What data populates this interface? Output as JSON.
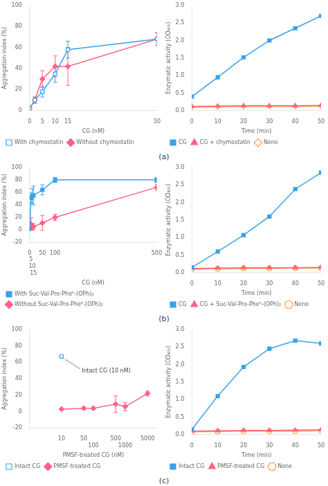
{
  "chart_data": [
    {
      "type": "line",
      "title": "(a)",
      "xlabel": "CG (nM)",
      "ylabel": "Aggregation index (%)",
      "xlim": [
        0,
        50
      ],
      "ylim": [
        0,
        100
      ],
      "xticks": [
        0,
        5,
        10,
        15,
        50
      ],
      "yticks": [
        0,
        20,
        40,
        60,
        80,
        100
      ],
      "grid": false,
      "legend": "bottom",
      "x": [
        0,
        2,
        5,
        10,
        15,
        50
      ],
      "series": [
        {
          "name": "With chymostatin",
          "marker": "square_open",
          "values": [
            2,
            10,
            18,
            35,
            58,
            68
          ],
          "yerr": [
            1,
            3,
            5,
            8,
            8,
            6
          ]
        },
        {
          "name": "Without chymostatin",
          "marker": "diamond",
          "values": [
            2,
            10,
            30,
            42,
            42,
            68
          ],
          "yerr": [
            1,
            3,
            8,
            10,
            18,
            6
          ]
        }
      ]
    },
    {
      "type": "line",
      "xlabel": "Time (min)",
      "ylabel": "Enzymatic activity (OD₄₀₅)",
      "xlim": [
        0,
        50
      ],
      "ylim": [
        0,
        3
      ],
      "xticks": [
        0,
        10,
        20,
        30,
        40,
        50
      ],
      "yticks": [
        {
          "value": 0,
          "label": "0.0"
        },
        0.5,
        {
          "value": 1,
          "label": "1.0"
        },
        1.5,
        {
          "value": 2,
          "label": "2.0"
        },
        2.5,
        {
          "value": 3,
          "label": "3.0"
        }
      ],
      "grid": false,
      "legend": "bottom",
      "x": [
        0,
        10,
        20,
        30,
        40,
        50
      ],
      "series": [
        {
          "name": "CG",
          "marker": "square",
          "values": [
            0.4,
            0.95,
            1.52,
            2.0,
            2.35,
            2.7
          ]
        },
        {
          "name": "CG + chymostatin",
          "marker": "triangle",
          "values": [
            0.12,
            0.13,
            0.14,
            0.14,
            0.14,
            0.15
          ]
        },
        {
          "name": "None",
          "marker": "diamond_open",
          "values": [
            0.1,
            0.11,
            0.12,
            0.12,
            0.12,
            0.13
          ]
        }
      ]
    },
    {
      "type": "line",
      "title": "(b)",
      "xlabel": "CG (nM)",
      "ylabel": "Aggregation index (%)",
      "xlim": [
        0,
        500
      ],
      "ylim": [
        -20,
        100
      ],
      "xticks": [
        0,
        5,
        10,
        15,
        50,
        100,
        500
      ],
      "yticks": [
        -20,
        0,
        20,
        40,
        60,
        80,
        100
      ],
      "grid": false,
      "legend": "bottom",
      "x": [
        0,
        5,
        10,
        15,
        50,
        100,
        500
      ],
      "series": [
        {
          "name": "With Suc-Val-Pro-Pheᴾ-(OPh)₂",
          "marker": "square",
          "values": [
            2,
            51,
            54,
            55,
            64,
            80,
            80
          ],
          "yerr": [
            1,
            8,
            12,
            15,
            8,
            4,
            4
          ]
        },
        {
          "name": "Without Suc-Val-Pro-Pheᴾ-(OPh)₂",
          "marker": "diamond",
          "values": [
            2,
            9,
            5,
            5,
            11,
            20,
            68
          ],
          "yerr": [
            1,
            10,
            5,
            5,
            12,
            5,
            5
          ]
        }
      ]
    },
    {
      "type": "line",
      "xlabel": "Time (min)",
      "ylabel": "Enzymatic activity (OD₄₀₅)",
      "xlim": [
        0,
        50
      ],
      "ylim": [
        0,
        3
      ],
      "xticks": [
        0,
        10,
        20,
        30,
        40,
        50
      ],
      "yticks": [
        {
          "value": 0,
          "label": "0.0"
        },
        0.5,
        {
          "value": 1,
          "label": "1.0"
        },
        1.5,
        {
          "value": 2,
          "label": "2.0"
        },
        2.5,
        {
          "value": 3,
          "label": "3.0"
        }
      ],
      "grid": false,
      "legend": "bottom",
      "x": [
        0,
        10,
        20,
        30,
        40,
        50
      ],
      "series": [
        {
          "name": "CG",
          "marker": "square",
          "values": [
            0.15,
            0.6,
            1.07,
            1.6,
            2.38,
            2.85
          ]
        },
        {
          "name": "CG + Suc-Val-Pro-Pheᴾ-(OPh)₂",
          "marker": "triangle",
          "values": [
            0.12,
            0.13,
            0.14,
            0.14,
            0.14,
            0.15
          ]
        },
        {
          "name": "None",
          "marker": "circle_open",
          "values": [
            0.1,
            0.11,
            0.12,
            0.12,
            0.13,
            0.13
          ]
        }
      ]
    },
    {
      "type": "line",
      "title": "(c)",
      "xlabel": "PMSF-treated CG (nM)",
      "ylabel": "Aggregation index (%)",
      "log": "x",
      "xlim": [
        1,
        10000
      ],
      "ylim": [
        -20,
        100
      ],
      "xticks": [
        10,
        50,
        100,
        500,
        1000,
        5000
      ],
      "yticks": [
        -20,
        0,
        20,
        40,
        60,
        80,
        100
      ],
      "grid": false,
      "legend": "bottom",
      "x": [
        10,
        50,
        100,
        500,
        1000,
        5000
      ],
      "series": [
        {
          "name": "Intact CG",
          "marker": "square_open",
          "values": [
            67,
            null,
            null,
            null,
            null,
            null
          ],
          "yerr": [
            0,
            null,
            null,
            null,
            null,
            null
          ]
        },
        {
          "name": "PMSF-treated CG",
          "marker": "diamond",
          "values": [
            3,
            4,
            4,
            9,
            6,
            22
          ],
          "yerr": [
            1,
            1,
            1,
            10,
            5,
            3
          ]
        }
      ],
      "annotations": [
        {
          "text": "Intact CG (10 nM)",
          "x": 10,
          "y": 67
        }
      ]
    },
    {
      "type": "line",
      "xlabel": "Time (min)",
      "ylabel": "Enzymatic activity (OD₄₀₅)",
      "xlim": [
        0,
        50
      ],
      "ylim": [
        0,
        3
      ],
      "xticks": [
        0,
        10,
        20,
        30,
        40,
        50
      ],
      "yticks": [
        {
          "value": 0,
          "label": "0.0"
        },
        0.5,
        {
          "value": 1,
          "label": "1.0"
        },
        1.5,
        {
          "value": 2,
          "label": "2.0"
        },
        2.5,
        {
          "value": 3,
          "label": "3.0"
        }
      ],
      "grid": false,
      "legend": "bottom",
      "x": [
        0,
        10,
        20,
        30,
        40,
        50
      ],
      "series": [
        {
          "name": "Intact CG",
          "marker": "square",
          "values": [
            0.15,
            1.1,
            1.93,
            2.45,
            2.68,
            2.6
          ]
        },
        {
          "name": "PMSF-treated CG",
          "marker": "triangle",
          "values": [
            0.1,
            0.11,
            0.12,
            0.12,
            0.13,
            0.14
          ]
        },
        {
          "name": "None",
          "marker": "circle_open",
          "values": [
            0.08,
            0.09,
            0.1,
            0.1,
            0.1,
            0.11
          ]
        }
      ]
    }
  ]
}
